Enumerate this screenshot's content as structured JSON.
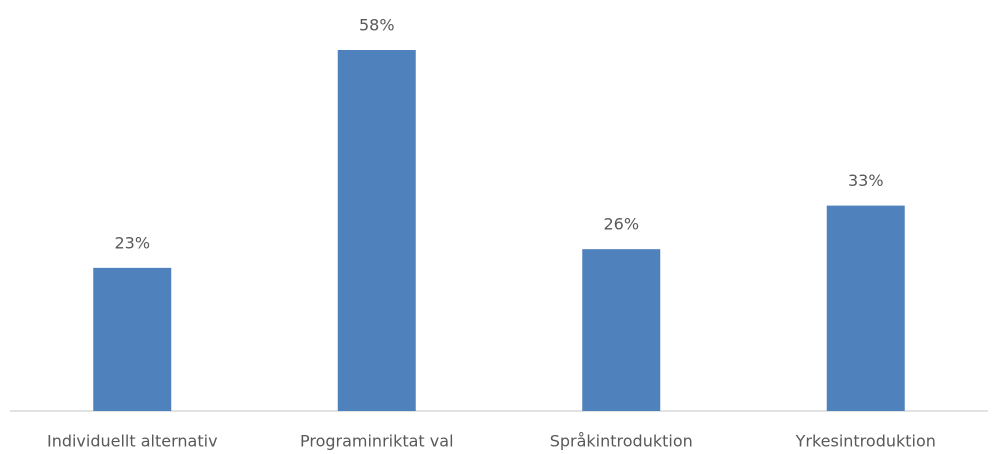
{
  "chart_data": {
    "type": "bar",
    "categories": [
      "Individuellt alternativ",
      "Programinriktat val",
      "Språkintroduktion",
      "Yrkesintroduktion"
    ],
    "values": [
      23,
      58,
      26,
      33
    ],
    "value_labels": [
      "23%",
      "58%",
      "26%",
      "33%"
    ],
    "color": "#4f81bd"
  }
}
